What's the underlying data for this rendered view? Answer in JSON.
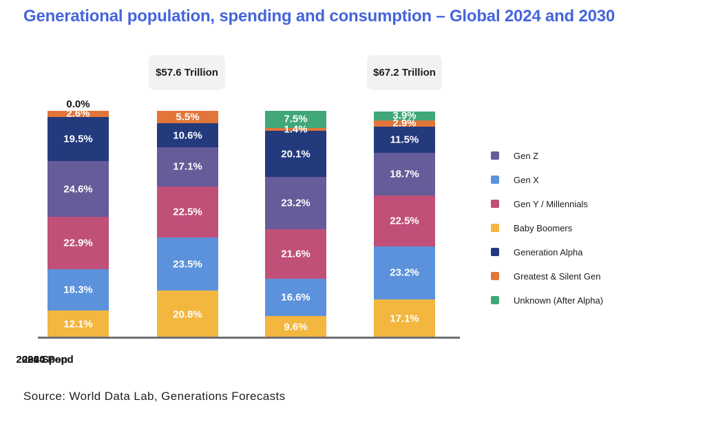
{
  "page": {
    "title": "Generational population, spending and consumption – Global 2024 and 2030",
    "source": "Source: World Data Lab, Generations Forecasts"
  },
  "legend": [
    {
      "key": "gen_z",
      "label": "Gen Z"
    },
    {
      "key": "gen_x",
      "label": "Gen X"
    },
    {
      "key": "gen_y",
      "label": "Gen Y / Millennials"
    },
    {
      "key": "baby_boomers",
      "label": "Baby Boomers"
    },
    {
      "key": "gen_alpha",
      "label": "Generation Alpha"
    },
    {
      "key": "greatest_silent",
      "label": "Greatest & Silent Gen"
    },
    {
      "key": "unknown",
      "label": "Unknown (After Alpha)"
    }
  ],
  "chart_data": {
    "type": "bar",
    "stacked": true,
    "title": "Generational population, spending and consumption – Global 2024 and 2030",
    "categories": [
      "2024 Pop",
      "2024 Spend",
      "2030 Pop",
      "2030 Spend"
    ],
    "unit": "%",
    "ylim": [
      0,
      100
    ],
    "grid": false,
    "legend_position": "right",
    "series": [
      {
        "key": "baby_boomers",
        "name": "Baby Boomers",
        "color": "#F3B63F",
        "values": [
          12.1,
          20.8,
          9.6,
          17.1
        ]
      },
      {
        "key": "gen_x",
        "name": "Gen X",
        "color": "#5C92DC",
        "values": [
          18.3,
          23.5,
          16.6,
          23.2
        ]
      },
      {
        "key": "gen_y",
        "name": "Gen Y / Millennials",
        "color": "#C15079",
        "values": [
          22.9,
          22.5,
          21.6,
          22.5
        ]
      },
      {
        "key": "gen_z",
        "name": "Gen Z",
        "color": "#655C99",
        "values": [
          24.6,
          17.1,
          23.2,
          18.7
        ]
      },
      {
        "key": "gen_alpha",
        "name": "Generation Alpha",
        "color": "#233A7D",
        "values": [
          19.5,
          10.6,
          20.1,
          11.5
        ]
      },
      {
        "key": "greatest_silent",
        "name": "Greatest & Silent Gen",
        "color": "#E27539",
        "values": [
          2.6,
          5.5,
          1.4,
          2.9
        ]
      },
      {
        "key": "unknown",
        "name": "Unknown (After Alpha)",
        "color": "#41A779",
        "values": [
          0.0,
          null,
          7.5,
          3.9
        ]
      }
    ],
    "annotations": [
      {
        "category": "2024 Spend",
        "text": "$57.6 Trillion"
      },
      {
        "category": "2030 Spend",
        "text": "$67.2 Trillion"
      }
    ]
  }
}
